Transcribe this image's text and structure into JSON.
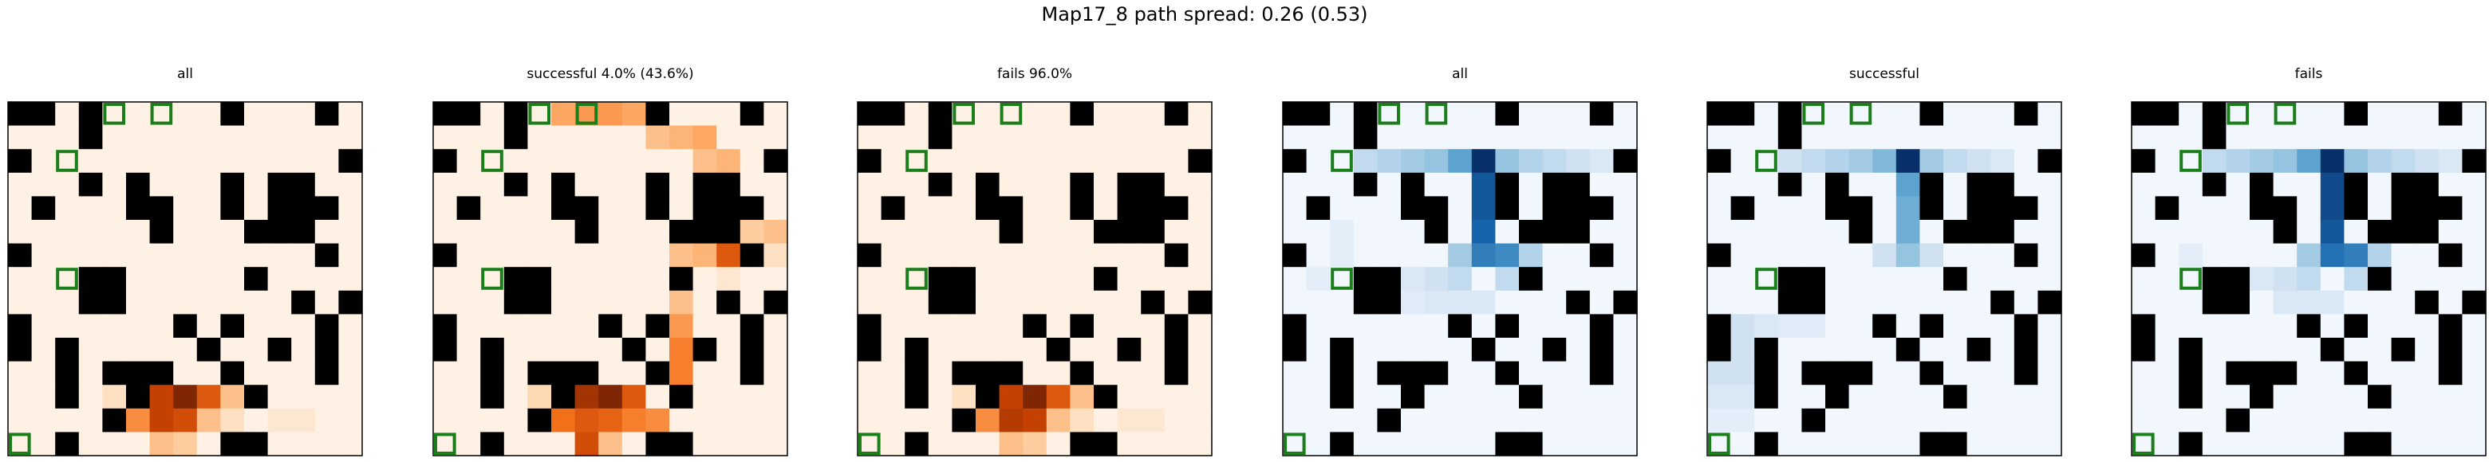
{
  "figure": {
    "title": "Map17_8 path spread: 0.26 (0.53)"
  },
  "chart_data": {
    "type": "heatmap",
    "grid_size": 15,
    "colormaps": {
      "oranges": [
        "#fff5eb",
        "#fdd9b4",
        "#fda762",
        "#f3701b",
        "#c54102",
        "#7f2704"
      ],
      "blues": [
        "#f7fbff",
        "#d0e1f2",
        "#94c4df",
        "#4a98c9",
        "#1764ab",
        "#08306b"
      ]
    },
    "obstacle_color": "#000000",
    "marker_color": "#1a7f1a",
    "obstacles": [
      [
        0,
        0
      ],
      [
        1,
        0
      ],
      [
        3,
        0
      ],
      [
        9,
        0
      ],
      [
        13,
        0
      ],
      [
        3,
        1
      ],
      [
        0,
        2
      ],
      [
        14,
        2
      ],
      [
        3,
        3
      ],
      [
        5,
        3
      ],
      [
        9,
        3
      ],
      [
        11,
        3
      ],
      [
        12,
        3
      ],
      [
        1,
        4
      ],
      [
        5,
        4
      ],
      [
        6,
        4
      ],
      [
        9,
        4
      ],
      [
        11,
        4
      ],
      [
        12,
        4
      ],
      [
        13,
        4
      ],
      [
        6,
        5
      ],
      [
        10,
        5
      ],
      [
        11,
        5
      ],
      [
        12,
        5
      ],
      [
        0,
        6
      ],
      [
        13,
        6
      ],
      [
        3,
        7
      ],
      [
        4,
        7
      ],
      [
        10,
        7
      ],
      [
        3,
        8
      ],
      [
        4,
        8
      ],
      [
        12,
        8
      ],
      [
        14,
        8
      ],
      [
        0,
        9
      ],
      [
        7,
        9
      ],
      [
        9,
        9
      ],
      [
        13,
        9
      ],
      [
        0,
        10
      ],
      [
        2,
        10
      ],
      [
        8,
        10
      ],
      [
        11,
        10
      ],
      [
        13,
        10
      ],
      [
        2,
        11
      ],
      [
        4,
        11
      ],
      [
        5,
        11
      ],
      [
        6,
        11
      ],
      [
        9,
        11
      ],
      [
        13,
        11
      ],
      [
        2,
        12
      ],
      [
        5,
        12
      ],
      [
        10,
        12
      ],
      [
        4,
        13
      ],
      [
        2,
        14
      ],
      [
        9,
        14
      ],
      [
        10,
        14
      ]
    ],
    "markers": [
      [
        4,
        0
      ],
      [
        6,
        0
      ],
      [
        2,
        2
      ],
      [
        2,
        7
      ],
      [
        0,
        14
      ]
    ],
    "panels": [
      {
        "title": "all",
        "colormap": "oranges",
        "vmax": 1.0,
        "hot": [
          [
            5,
            12,
            0.6
          ],
          [
            6,
            12,
            0.8
          ],
          [
            7,
            12,
            1.0
          ],
          [
            8,
            12,
            0.7
          ],
          [
            9,
            12,
            0.3
          ],
          [
            10,
            12,
            0.15
          ],
          [
            5,
            13,
            0.5
          ],
          [
            6,
            13,
            0.8
          ],
          [
            7,
            13,
            0.75
          ],
          [
            8,
            13,
            0.3
          ],
          [
            9,
            13,
            0.15
          ],
          [
            6,
            14,
            0.3
          ],
          [
            7,
            14,
            0.25
          ],
          [
            4,
            12,
            0.15
          ],
          [
            11,
            13,
            0.1
          ],
          [
            12,
            13,
            0.1
          ]
        ]
      },
      {
        "title": "successful 4.0% (43.6%)",
        "colormap": "oranges",
        "vmax": 1.0,
        "hot": [
          [
            5,
            0,
            0.4
          ],
          [
            6,
            0,
            0.45
          ],
          [
            7,
            0,
            0.45
          ],
          [
            8,
            0,
            0.4
          ],
          [
            9,
            1,
            0.3
          ],
          [
            10,
            1,
            0.35
          ],
          [
            11,
            1,
            0.4
          ],
          [
            11,
            2,
            0.3
          ],
          [
            12,
            2,
            0.35
          ],
          [
            12,
            3,
            0.4
          ],
          [
            12,
            4,
            0.9
          ],
          [
            13,
            4,
            0.8
          ],
          [
            12,
            5,
            0.85
          ],
          [
            11,
            6,
            0.35
          ],
          [
            12,
            6,
            0.7
          ],
          [
            13,
            6,
            0.9
          ],
          [
            10,
            6,
            0.3
          ],
          [
            10,
            8,
            0.3
          ],
          [
            10,
            9,
            0.45
          ],
          [
            10,
            10,
            0.55
          ],
          [
            10,
            11,
            0.55
          ],
          [
            10,
            12,
            0.6
          ],
          [
            6,
            12,
            0.9
          ],
          [
            7,
            12,
            1.0
          ],
          [
            8,
            12,
            0.7
          ],
          [
            5,
            13,
            0.6
          ],
          [
            6,
            13,
            0.7
          ],
          [
            7,
            13,
            0.65
          ],
          [
            8,
            13,
            0.55
          ],
          [
            9,
            13,
            0.5
          ],
          [
            6,
            14,
            0.75
          ],
          [
            7,
            14,
            0.3
          ],
          [
            4,
            12,
            0.2
          ],
          [
            13,
            5,
            0.25
          ],
          [
            14,
            5,
            0.3
          ],
          [
            14,
            6,
            0.15
          ],
          [
            12,
            7,
            0.1
          ]
        ]
      },
      {
        "title": "fails 96.0%",
        "colormap": "oranges",
        "vmax": 1.0,
        "hot": [
          [
            5,
            12,
            0.6
          ],
          [
            6,
            12,
            0.8
          ],
          [
            7,
            12,
            1.0
          ],
          [
            8,
            12,
            0.7
          ],
          [
            9,
            12,
            0.3
          ],
          [
            10,
            12,
            0.15
          ],
          [
            5,
            13,
            0.5
          ],
          [
            6,
            13,
            0.85
          ],
          [
            7,
            13,
            0.8
          ],
          [
            8,
            13,
            0.3
          ],
          [
            9,
            13,
            0.15
          ],
          [
            6,
            14,
            0.3
          ],
          [
            7,
            14,
            0.25
          ],
          [
            4,
            12,
            0.15
          ],
          [
            11,
            13,
            0.1
          ],
          [
            12,
            13,
            0.1
          ]
        ]
      },
      {
        "title": "all",
        "colormap": "blues",
        "vmax": 1.0,
        "hot": [
          [
            3,
            2,
            0.25
          ],
          [
            4,
            2,
            0.3
          ],
          [
            5,
            2,
            0.35
          ],
          [
            6,
            2,
            0.4
          ],
          [
            7,
            2,
            0.55
          ],
          [
            8,
            2,
            1.0
          ],
          [
            9,
            2,
            0.4
          ],
          [
            10,
            2,
            0.3
          ],
          [
            11,
            2,
            0.25
          ],
          [
            12,
            2,
            0.2
          ],
          [
            13,
            2,
            0.15
          ],
          [
            8,
            3,
            0.85
          ],
          [
            8,
            4,
            0.85
          ],
          [
            8,
            5,
            0.8
          ],
          [
            7,
            6,
            0.35
          ],
          [
            8,
            6,
            0.7
          ],
          [
            9,
            6,
            0.65
          ],
          [
            10,
            6,
            0.3
          ],
          [
            6,
            7,
            0.2
          ],
          [
            7,
            7,
            0.25
          ],
          [
            9,
            7,
            0.25
          ],
          [
            6,
            8,
            0.15
          ],
          [
            7,
            8,
            0.15
          ],
          [
            8,
            8,
            0.15
          ],
          [
            2,
            5,
            0.1
          ],
          [
            1,
            7,
            0.1
          ],
          [
            2,
            6,
            0.1
          ],
          [
            5,
            7,
            0.15
          ],
          [
            5,
            8,
            0.12
          ]
        ]
      },
      {
        "title": "successful",
        "colormap": "blues",
        "vmax": 1.0,
        "hot": [
          [
            3,
            2,
            0.2
          ],
          [
            4,
            2,
            0.25
          ],
          [
            5,
            2,
            0.3
          ],
          [
            6,
            2,
            0.35
          ],
          [
            7,
            2,
            0.45
          ],
          [
            8,
            2,
            1.0
          ],
          [
            9,
            2,
            0.35
          ],
          [
            10,
            2,
            0.25
          ],
          [
            11,
            2,
            0.2
          ],
          [
            12,
            2,
            0.15
          ],
          [
            8,
            3,
            0.55
          ],
          [
            8,
            4,
            0.5
          ],
          [
            8,
            5,
            0.5
          ],
          [
            8,
            6,
            0.4
          ],
          [
            7,
            6,
            0.2
          ],
          [
            9,
            6,
            0.2
          ],
          [
            1,
            9,
            0.2
          ],
          [
            1,
            10,
            0.2
          ],
          [
            2,
            9,
            0.15
          ],
          [
            0,
            11,
            0.2
          ],
          [
            1,
            11,
            0.2
          ],
          [
            0,
            12,
            0.15
          ],
          [
            1,
            12,
            0.15
          ],
          [
            1,
            13,
            0.1
          ],
          [
            0,
            13,
            0.1
          ],
          [
            3,
            9,
            0.12
          ],
          [
            4,
            9,
            0.12
          ]
        ]
      },
      {
        "title": "fails",
        "colormap": "blues",
        "vmax": 1.0,
        "hot": [
          [
            3,
            2,
            0.25
          ],
          [
            4,
            2,
            0.3
          ],
          [
            5,
            2,
            0.35
          ],
          [
            6,
            2,
            0.4
          ],
          [
            7,
            2,
            0.55
          ],
          [
            8,
            2,
            1.0
          ],
          [
            9,
            2,
            0.4
          ],
          [
            10,
            2,
            0.3
          ],
          [
            11,
            2,
            0.25
          ],
          [
            12,
            2,
            0.2
          ],
          [
            13,
            2,
            0.15
          ],
          [
            8,
            3,
            0.9
          ],
          [
            8,
            4,
            0.9
          ],
          [
            8,
            5,
            0.85
          ],
          [
            7,
            6,
            0.35
          ],
          [
            8,
            6,
            0.75
          ],
          [
            9,
            6,
            0.7
          ],
          [
            10,
            6,
            0.3
          ],
          [
            6,
            7,
            0.2
          ],
          [
            7,
            7,
            0.25
          ],
          [
            9,
            7,
            0.25
          ],
          [
            6,
            8,
            0.15
          ],
          [
            7,
            8,
            0.15
          ],
          [
            8,
            8,
            0.15
          ],
          [
            2,
            6,
            0.1
          ],
          [
            5,
            7,
            0.15
          ]
        ]
      }
    ]
  }
}
